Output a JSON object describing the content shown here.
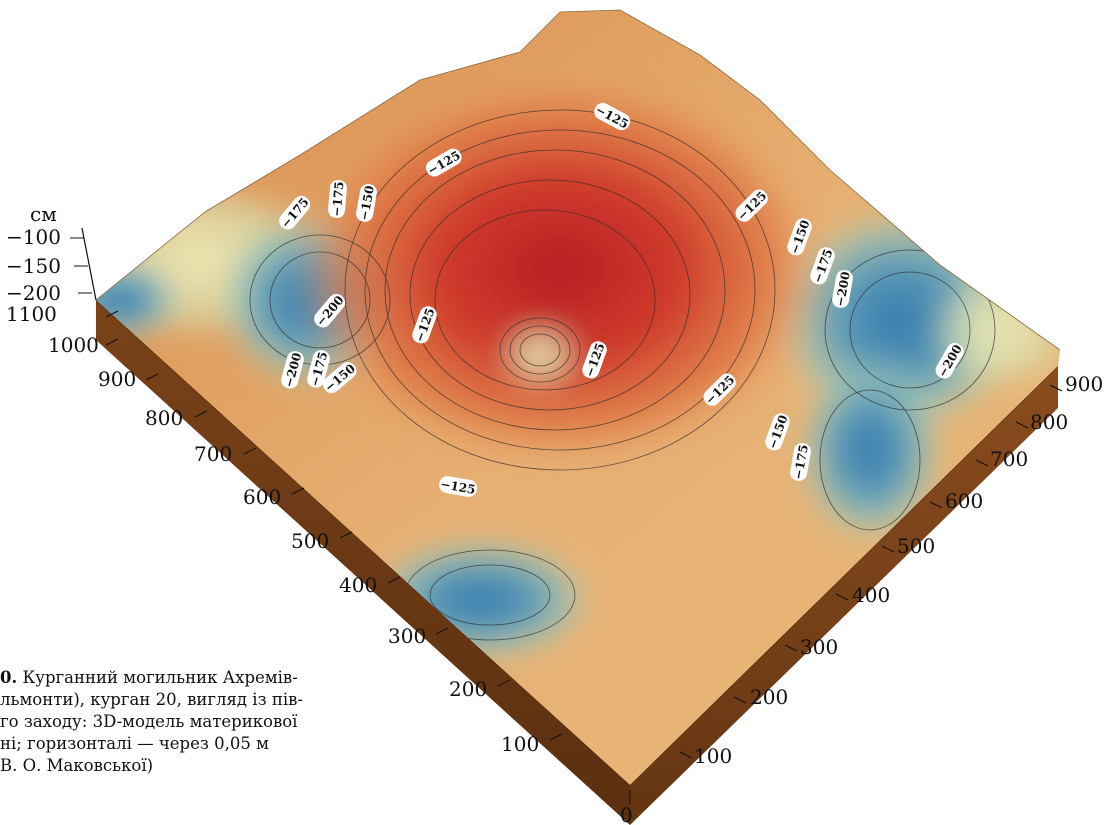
{
  "figure": {
    "unit_label": "см",
    "elevation_ticks": [
      "−100",
      "−150",
      "−200"
    ],
    "left_axis_ticks": [
      "1100",
      "1000",
      "900",
      "800",
      "700",
      "600",
      "500",
      "400",
      "300",
      "200",
      "100",
      "0"
    ],
    "right_axis_ticks": [
      "100",
      "200",
      "300",
      "400",
      "500",
      "600",
      "700",
      "800",
      "900"
    ],
    "contour_labels": [
      "−125",
      "−125",
      "−125",
      "−125",
      "−125",
      "−125",
      "−125",
      "−150",
      "−150",
      "−150",
      "−150",
      "−175",
      "−175",
      "−175",
      "−175",
      "−175",
      "−200",
      "−200",
      "−200",
      "−200"
    ],
    "colors": {
      "high": "#c42a2a",
      "mid": "#e8b070",
      "low": "#3f85b3",
      "side": "#6b3a16"
    }
  },
  "caption": {
    "figure_number": "0.",
    "line1": "Курганний могильник Ахремів-",
    "line2": "льмонти), курган 20, вигляд із пів-",
    "line3": "го заходу: 3D-модель материкової",
    "line4": "ні;  горизонталі —   через   0,05 м",
    "line5": "В. О. Маковської)"
  }
}
